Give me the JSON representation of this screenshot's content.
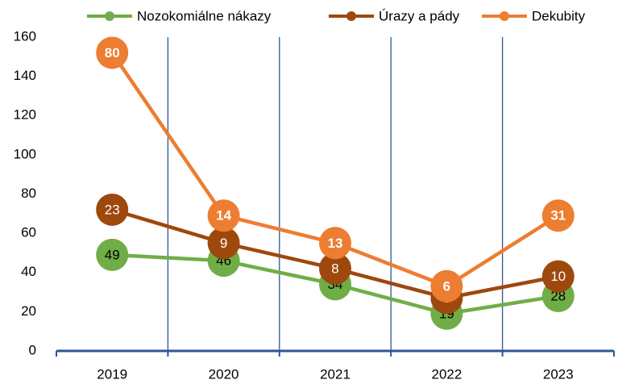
{
  "chart_data": {
    "type": "line",
    "stacked": true,
    "grid": true,
    "legend": "top",
    "categories": [
      "2019",
      "2020",
      "2021",
      "2022",
      "2023"
    ],
    "series": [
      {
        "name": "Nozokomiálne nákazy",
        "color": "#70ad47",
        "values": [
          49,
          46,
          34,
          19,
          28
        ]
      },
      {
        "name": "Úrazy a pády",
        "color": "#9e480e",
        "values": [
          23,
          9,
          8,
          8,
          10
        ]
      },
      {
        "name": "Dekubity",
        "color": "#ed7d31",
        "values": [
          80,
          14,
          13,
          6,
          31
        ]
      }
    ],
    "ylim": [
      0,
      160
    ],
    "yticks": [
      0,
      20,
      40,
      60,
      80,
      100,
      120,
      140,
      160
    ]
  }
}
